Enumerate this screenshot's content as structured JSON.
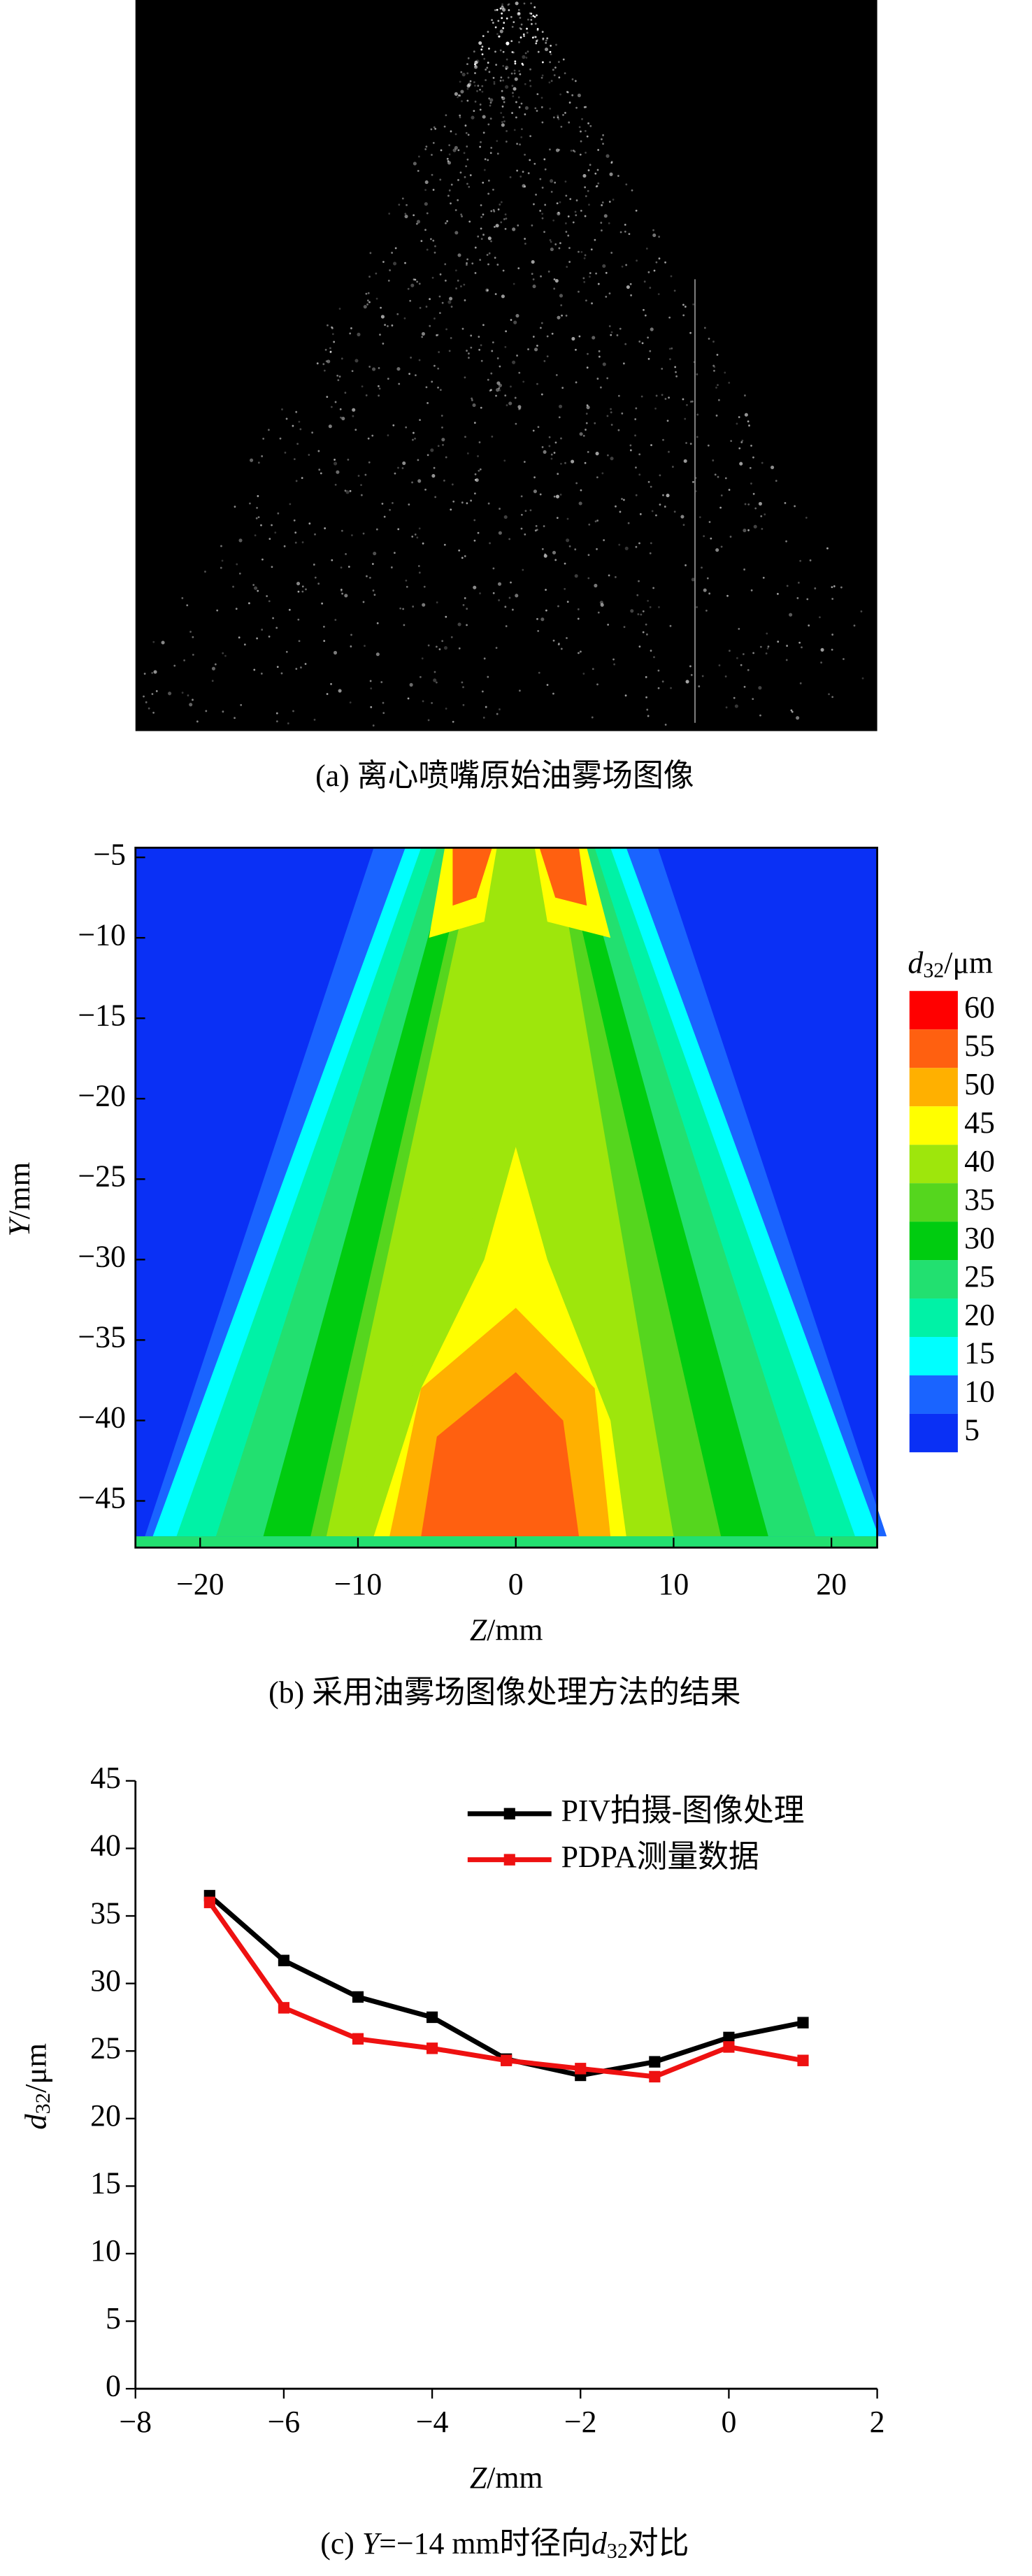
{
  "chart_data": [
    {
      "type": "image",
      "caption": "(a) 离心喷嘴原始油雾场图像"
    },
    {
      "type": "contour",
      "caption": "(b) 采用油雾场图像处理方法的结果",
      "x_label": [
        "Z",
        "/mm"
      ],
      "y_label": [
        "Y",
        "/mm"
      ],
      "colorbar_label": [
        "d",
        "32",
        "/μm"
      ],
      "xlim": [
        -24.1,
        22.9
      ],
      "xticks": [
        {
          "value": -20,
          "label": "−20"
        },
        {
          "value": -10,
          "label": "−10"
        },
        0,
        10,
        20
      ],
      "ylim": [
        -47.9,
        -4.4
      ],
      "yticks": [
        {
          "value": -5,
          "label": "−5"
        },
        {
          "value": -10,
          "label": "−10"
        },
        {
          "value": -15,
          "label": "−15"
        },
        {
          "value": -20,
          "label": "−20"
        },
        {
          "value": -25,
          "label": "−25"
        },
        {
          "value": -30,
          "label": "−30"
        },
        {
          "value": -35,
          "label": "−35"
        },
        {
          "value": -40,
          "label": "−40"
        },
        {
          "value": -45,
          "label": "−45"
        }
      ],
      "levels": [
        5,
        10,
        15,
        20,
        25,
        30,
        35,
        40,
        45,
        50,
        55,
        60
      ],
      "colors": [
        "#0a30f5",
        "#1a64ff",
        "#00ffff",
        "#00f2a6",
        "#22e070",
        "#00cc10",
        "#55d61e",
        "#9ee60c",
        "#ffff00",
        "#ffb000",
        "#ff6010",
        "#ff0000"
      ]
    },
    {
      "type": "line",
      "caption": [
        "(c) ",
        "Y",
        "=−14 mm时径向",
        "d",
        "32",
        "对比"
      ],
      "x_label": [
        "Z",
        "/mm"
      ],
      "y_label": [
        "d",
        "32",
        "/μm"
      ],
      "x": [
        -7,
        -6,
        -5,
        -4,
        -3,
        -2,
        -1,
        0,
        1
      ],
      "series": [
        {
          "name": "PIV拍摄-图像处理",
          "color": "#000000",
          "values": [
            36.5,
            31.7,
            29,
            27.5,
            24.4,
            23.2,
            24.2,
            26,
            27.1
          ]
        },
        {
          "name": "PDPA测量数据",
          "color": "#ee1111",
          "values": [
            36,
            28.2,
            25.9,
            25.2,
            24.3,
            23.7,
            23.1,
            25.3,
            24.3
          ]
        }
      ],
      "xlim": [
        -8,
        2
      ],
      "xticks": [
        {
          "value": -8,
          "label": "−8"
        },
        {
          "value": -6,
          "label": "−6"
        },
        {
          "value": -4,
          "label": "−4"
        },
        {
          "value": -2,
          "label": "−2"
        },
        0,
        2
      ],
      "ylim": [
        0,
        45
      ],
      "yticks": [
        0,
        5,
        10,
        15,
        20,
        25,
        30,
        35,
        40,
        45
      ],
      "legend": "upper right"
    }
  ]
}
